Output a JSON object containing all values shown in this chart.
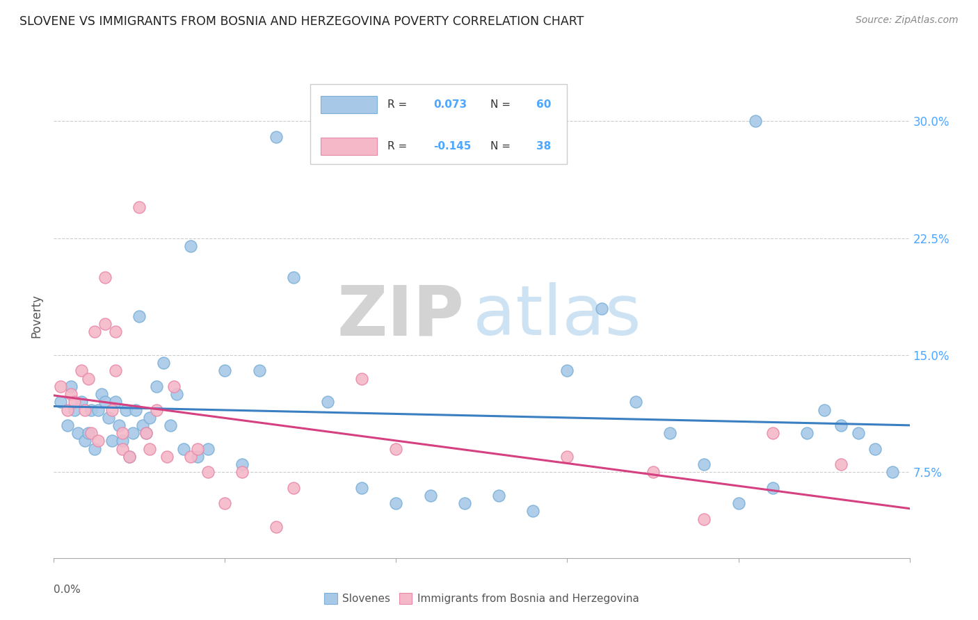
{
  "title": "SLOVENE VS IMMIGRANTS FROM BOSNIA AND HERZEGOVINA POVERTY CORRELATION CHART",
  "source": "Source: ZipAtlas.com",
  "ylabel": "Poverty",
  "yticks": [
    "7.5%",
    "15.0%",
    "22.5%",
    "30.0%"
  ],
  "ytick_values": [
    0.075,
    0.15,
    0.225,
    0.3
  ],
  "xrange": [
    0.0,
    0.25
  ],
  "yrange": [
    0.02,
    0.33
  ],
  "blue_color": "#a8c8e8",
  "blue_edge_color": "#7ab0d8",
  "pink_color": "#f5b8c8",
  "pink_edge_color": "#e888a8",
  "blue_line_color": "#3a7fc1",
  "pink_line_color": "#d44080",
  "R_blue": "0.073",
  "N_blue": "60",
  "R_pink": "-0.145",
  "N_pink": "38",
  "legend_label_blue": "Slovenes",
  "legend_label_pink": "Immigrants from Bosnia and Herzegovina",
  "watermark_zip": "ZIP",
  "watermark_atlas": "atlas",
  "blue_dots_x": [
    0.002,
    0.004,
    0.005,
    0.006,
    0.007,
    0.008,
    0.009,
    0.01,
    0.011,
    0.012,
    0.013,
    0.014,
    0.015,
    0.016,
    0.017,
    0.018,
    0.019,
    0.02,
    0.021,
    0.022,
    0.023,
    0.024,
    0.025,
    0.026,
    0.027,
    0.028,
    0.03,
    0.032,
    0.034,
    0.036,
    0.038,
    0.04,
    0.042,
    0.045,
    0.05,
    0.055,
    0.06,
    0.065,
    0.07,
    0.08,
    0.09,
    0.1,
    0.11,
    0.12,
    0.13,
    0.14,
    0.15,
    0.16,
    0.17,
    0.18,
    0.19,
    0.2,
    0.205,
    0.21,
    0.22,
    0.225,
    0.23,
    0.235,
    0.24,
    0.245
  ],
  "blue_dots_y": [
    0.12,
    0.105,
    0.13,
    0.115,
    0.1,
    0.12,
    0.095,
    0.1,
    0.115,
    0.09,
    0.115,
    0.125,
    0.12,
    0.11,
    0.095,
    0.12,
    0.105,
    0.095,
    0.115,
    0.085,
    0.1,
    0.115,
    0.175,
    0.105,
    0.1,
    0.11,
    0.13,
    0.145,
    0.105,
    0.125,
    0.09,
    0.22,
    0.085,
    0.09,
    0.14,
    0.08,
    0.14,
    0.29,
    0.2,
    0.12,
    0.065,
    0.055,
    0.06,
    0.055,
    0.06,
    0.05,
    0.14,
    0.18,
    0.12,
    0.1,
    0.08,
    0.055,
    0.3,
    0.065,
    0.1,
    0.115,
    0.105,
    0.1,
    0.09,
    0.075
  ],
  "pink_dots_x": [
    0.002,
    0.004,
    0.005,
    0.006,
    0.008,
    0.009,
    0.01,
    0.011,
    0.012,
    0.013,
    0.015,
    0.015,
    0.017,
    0.018,
    0.018,
    0.02,
    0.02,
    0.022,
    0.025,
    0.027,
    0.028,
    0.03,
    0.033,
    0.035,
    0.04,
    0.042,
    0.045,
    0.05,
    0.055,
    0.065,
    0.07,
    0.09,
    0.1,
    0.15,
    0.175,
    0.19,
    0.21,
    0.23
  ],
  "pink_dots_y": [
    0.13,
    0.115,
    0.125,
    0.12,
    0.14,
    0.115,
    0.135,
    0.1,
    0.165,
    0.095,
    0.2,
    0.17,
    0.115,
    0.165,
    0.14,
    0.1,
    0.09,
    0.085,
    0.245,
    0.1,
    0.09,
    0.115,
    0.085,
    0.13,
    0.085,
    0.09,
    0.075,
    0.055,
    0.075,
    0.04,
    0.065,
    0.135,
    0.09,
    0.085,
    0.075,
    0.045,
    0.1,
    0.08
  ],
  "accent_color": "#4da6ff"
}
